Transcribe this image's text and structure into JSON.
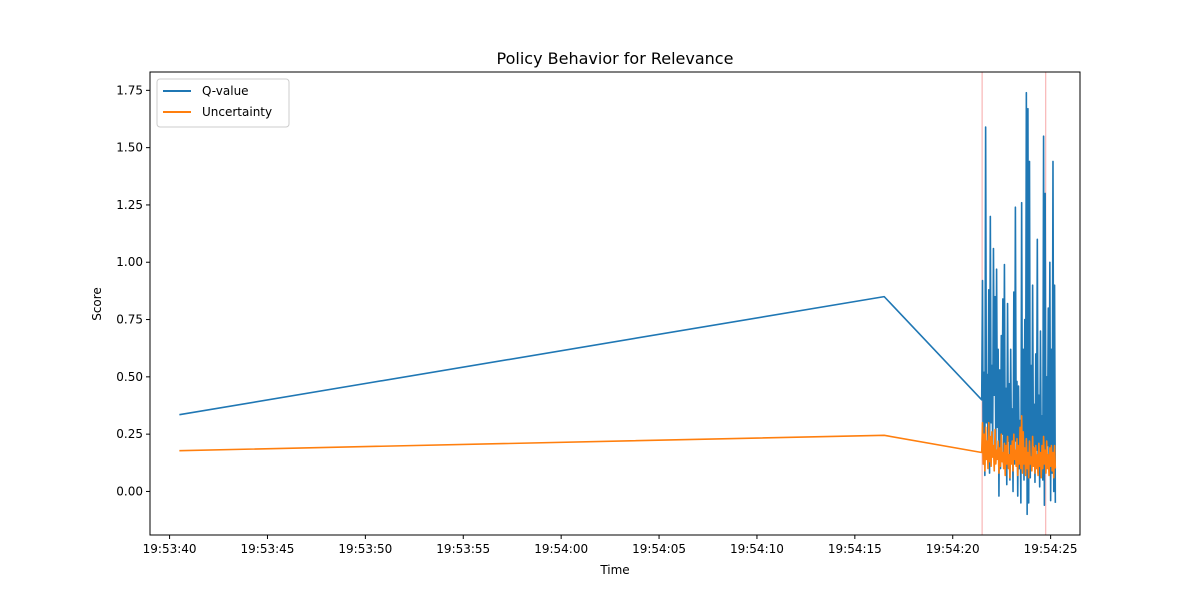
{
  "chart_data": {
    "type": "line",
    "title": "Policy Behavior for Relevance",
    "xlabel": "Time",
    "ylabel": "Score",
    "x_axis_kind": "time",
    "xlim": [
      "19:53:39.000",
      "19:54:26.500"
    ],
    "ylim": [
      -0.19,
      1.83
    ],
    "x_ticks": [
      "19:53:40",
      "19:53:45",
      "19:53:50",
      "19:53:55",
      "19:54:00",
      "19:54:05",
      "19:54:10",
      "19:54:15",
      "19:54:20",
      "19:54:25"
    ],
    "y_ticks": [
      "0.00",
      "0.25",
      "0.50",
      "0.75",
      "1.00",
      "1.25",
      "1.50",
      "1.75"
    ],
    "legend": {
      "position": "top-left",
      "entries": [
        "Q-value",
        "Uncertainty"
      ]
    },
    "grid": false,
    "vertical_markers": {
      "color": "#f7a8a8",
      "times": [
        "19:54:21.500",
        "19:54:24.750"
      ]
    },
    "series": [
      {
        "name": "Q-value",
        "color": "#1f77b4",
        "x": [
          "19:53:40.500",
          "19:54:16.500",
          "19:54:21.480",
          "19:54:21.520",
          "19:54:21.560",
          "19:54:21.600",
          "19:54:21.640",
          "19:54:21.680",
          "19:54:21.720",
          "19:54:21.760",
          "19:54:21.800",
          "19:54:21.840",
          "19:54:21.880",
          "19:54:21.920",
          "19:54:21.960",
          "19:54:22.000",
          "19:54:22.040",
          "19:54:22.080",
          "19:54:22.120",
          "19:54:22.160",
          "19:54:22.200",
          "19:54:22.240",
          "19:54:22.280",
          "19:54:22.320",
          "19:54:22.360",
          "19:54:22.400",
          "19:54:22.440",
          "19:54:22.480",
          "19:54:22.520",
          "19:54:22.560",
          "19:54:22.600",
          "19:54:22.640",
          "19:54:22.680",
          "19:54:22.720",
          "19:54:22.760",
          "19:54:22.800",
          "19:54:22.840",
          "19:54:22.880",
          "19:54:22.920",
          "19:54:22.960",
          "19:54:23.000",
          "19:54:23.040",
          "19:54:23.080",
          "19:54:23.120",
          "19:54:23.160",
          "19:54:23.200",
          "19:54:23.240",
          "19:54:23.280",
          "19:54:23.320",
          "19:54:23.360",
          "19:54:23.400",
          "19:54:23.440",
          "19:54:23.480",
          "19:54:23.520",
          "19:54:23.560",
          "19:54:23.600",
          "19:54:23.640",
          "19:54:23.680",
          "19:54:23.720",
          "19:54:23.760",
          "19:54:23.800",
          "19:54:23.840",
          "19:54:23.880",
          "19:54:23.920",
          "19:54:23.960",
          "19:54:24.000",
          "19:54:24.040",
          "19:54:24.080",
          "19:54:24.120",
          "19:54:24.160",
          "19:54:24.200",
          "19:54:24.240",
          "19:54:24.280",
          "19:54:24.320",
          "19:54:24.360",
          "19:54:24.400",
          "19:54:24.440",
          "19:54:24.480",
          "19:54:24.520",
          "19:54:24.560",
          "19:54:24.600",
          "19:54:24.640",
          "19:54:24.680",
          "19:54:24.720",
          "19:54:24.760",
          "19:54:24.800",
          "19:54:24.840",
          "19:54:24.880",
          "19:54:24.920",
          "19:54:24.960",
          "19:54:25.000",
          "19:54:25.040",
          "19:54:25.080",
          "19:54:25.120",
          "19:54:25.160",
          "19:54:25.200",
          "19:54:25.240"
        ],
        "values": [
          0.335,
          0.85,
          0.4,
          0.92,
          0.12,
          0.52,
          0.07,
          1.59,
          0.3,
          0.51,
          0.2,
          0.88,
          0.08,
          1.2,
          0.3,
          0.55,
          0.2,
          1.06,
          0.42,
          0.85,
          0.16,
          0.97,
          0.28,
          0.62,
          -0.02,
          0.53,
          0.1,
          0.68,
          0.25,
          0.84,
          0.12,
          0.99,
          0.15,
          0.45,
          0.03,
          0.82,
          0.22,
          0.47,
          0.05,
          0.62,
          0.18,
          0.36,
          0.0,
          0.87,
          0.12,
          1.24,
          0.22,
          0.48,
          -0.02,
          0.46,
          0.1,
          0.31,
          -0.05,
          1.26,
          0.15,
          0.62,
          0.05,
          0.75,
          0.18,
          1.74,
          -0.1,
          1.67,
          -0.05,
          1.44,
          0.06,
          0.55,
          0.12,
          0.9,
          0.2,
          0.38,
          0.04,
          0.6,
          0.18,
          1.1,
          0.08,
          0.42,
          0.02,
          0.7,
          0.15,
          0.33,
          0.05,
          1.55,
          -0.06,
          1.3,
          0.1,
          0.5,
          0.2,
          0.8,
          0.12,
          1.0,
          -0.04,
          0.62,
          0.08,
          1.44,
          0.0,
          0.9,
          -0.05
        ]
      },
      {
        "name": "Uncertainty",
        "color": "#ff7f0e",
        "x": [
          "19:53:40.500",
          "19:54:16.500",
          "19:54:21.480",
          "19:54:21.520",
          "19:54:21.560",
          "19:54:21.600",
          "19:54:21.640",
          "19:54:21.680",
          "19:54:21.720",
          "19:54:21.760",
          "19:54:21.800",
          "19:54:21.840",
          "19:54:21.880",
          "19:54:21.920",
          "19:54:21.960",
          "19:54:22.000",
          "19:54:22.040",
          "19:54:22.080",
          "19:54:22.120",
          "19:54:22.160",
          "19:54:22.200",
          "19:54:22.240",
          "19:54:22.280",
          "19:54:22.320",
          "19:54:22.360",
          "19:54:22.400",
          "19:54:22.440",
          "19:54:22.480",
          "19:54:22.520",
          "19:54:22.560",
          "19:54:22.600",
          "19:54:22.640",
          "19:54:22.680",
          "19:54:22.720",
          "19:54:22.760",
          "19:54:22.800",
          "19:54:22.840",
          "19:54:22.880",
          "19:54:22.920",
          "19:54:22.960",
          "19:54:23.000",
          "19:54:23.040",
          "19:54:23.080",
          "19:54:23.120",
          "19:54:23.160",
          "19:54:23.200",
          "19:54:23.240",
          "19:54:23.280",
          "19:54:23.320",
          "19:54:23.360",
          "19:54:23.400",
          "19:54:23.440",
          "19:54:23.480",
          "19:54:23.520",
          "19:54:23.560",
          "19:54:23.600",
          "19:54:23.640",
          "19:54:23.680",
          "19:54:23.720",
          "19:54:23.760",
          "19:54:23.800",
          "19:54:23.840",
          "19:54:23.880",
          "19:54:23.920",
          "19:54:23.960",
          "19:54:24.000",
          "19:54:24.040",
          "19:54:24.080",
          "19:54:24.120",
          "19:54:24.160",
          "19:54:24.200",
          "19:54:24.240",
          "19:54:24.280",
          "19:54:24.320",
          "19:54:24.360",
          "19:54:24.400",
          "19:54:24.440",
          "19:54:24.480",
          "19:54:24.520",
          "19:54:24.560",
          "19:54:24.600",
          "19:54:24.640",
          "19:54:24.680",
          "19:54:24.720",
          "19:54:24.760",
          "19:54:24.800",
          "19:54:24.840",
          "19:54:24.880",
          "19:54:24.920",
          "19:54:24.960",
          "19:54:25.000",
          "19:54:25.040",
          "19:54:25.080",
          "19:54:25.120",
          "19:54:25.160",
          "19:54:25.200",
          "19:54:25.240"
        ],
        "values": [
          0.178,
          0.245,
          0.17,
          0.3,
          0.12,
          0.25,
          0.09,
          0.28,
          0.14,
          0.22,
          0.1,
          0.3,
          0.13,
          0.24,
          0.11,
          0.26,
          0.15,
          0.2,
          0.09,
          0.27,
          0.12,
          0.18,
          0.14,
          0.22,
          0.08,
          0.19,
          0.11,
          0.25,
          0.13,
          0.17,
          0.1,
          0.21,
          0.07,
          0.2,
          0.12,
          0.24,
          0.1,
          0.16,
          0.06,
          0.2,
          0.12,
          0.22,
          0.09,
          0.25,
          0.14,
          0.18,
          0.11,
          0.23,
          0.07,
          0.2,
          0.12,
          0.28,
          0.1,
          0.33,
          0.08,
          0.26,
          0.12,
          0.19,
          0.07,
          0.23,
          0.1,
          0.17,
          0.06,
          0.22,
          0.12,
          0.15,
          0.09,
          0.24,
          0.11,
          0.19,
          0.08,
          0.2,
          0.1,
          0.16,
          0.07,
          0.21,
          0.11,
          0.17,
          0.06,
          0.2,
          0.1,
          0.24,
          0.12,
          0.18,
          0.08,
          0.22,
          0.1,
          0.16,
          0.07,
          0.19,
          0.11,
          0.2,
          0.09,
          0.17,
          0.06,
          0.2,
          0.1
        ]
      }
    ]
  }
}
